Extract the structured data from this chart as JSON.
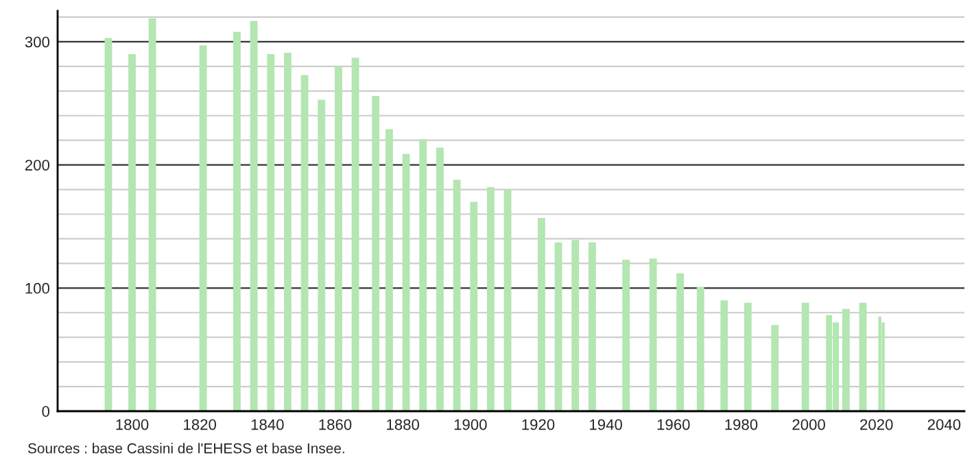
{
  "chart_data": {
    "type": "bar",
    "x": [
      1793,
      1800,
      1806,
      1821,
      1831,
      1836,
      1841,
      1846,
      1851,
      1856,
      1861,
      1866,
      1872,
      1876,
      1881,
      1886,
      1891,
      1896,
      1901,
      1906,
      1911,
      1921,
      1926,
      1931,
      1936,
      1946,
      1954,
      1962,
      1968,
      1975,
      1982,
      1990,
      1999,
      2006,
      2008,
      2011,
      2016,
      2021,
      2022
    ],
    "values": [
      303,
      290,
      319,
      297,
      308,
      317,
      290,
      291,
      273,
      253,
      280,
      287,
      256,
      229,
      209,
      221,
      214,
      188,
      170,
      182,
      180,
      157,
      137,
      139,
      137,
      123,
      124,
      112,
      101,
      90,
      88,
      70,
      88,
      78,
      72,
      83,
      88,
      77,
      72
    ],
    "color": "#b3e6b0",
    "xlim": [
      1778,
      2046
    ],
    "xticks": [
      1800,
      1820,
      1840,
      1860,
      1880,
      1900,
      1920,
      1940,
      1960,
      1980,
      2000,
      2020,
      2040
    ],
    "ylim": [
      0,
      325
    ],
    "yticks": [
      0,
      {
        "value": 20,
        "label": null
      },
      {
        "value": 40,
        "label": null
      },
      {
        "value": 60,
        "label": null
      },
      {
        "value": 80,
        "label": null
      },
      100,
      {
        "value": 120,
        "label": null
      },
      {
        "value": 140,
        "label": null
      },
      {
        "value": 160,
        "label": null
      },
      {
        "value": 180,
        "label": null
      },
      200,
      {
        "value": 220,
        "label": null
      },
      {
        "value": 240,
        "label": null
      },
      {
        "value": 260,
        "label": null
      },
      {
        "value": 280,
        "label": null
      },
      300,
      {
        "value": 320,
        "label": null
      }
    ],
    "grid": "y",
    "annotations": [
      "Sources : base Cassini de l'EHESS et base Insee."
    ]
  }
}
